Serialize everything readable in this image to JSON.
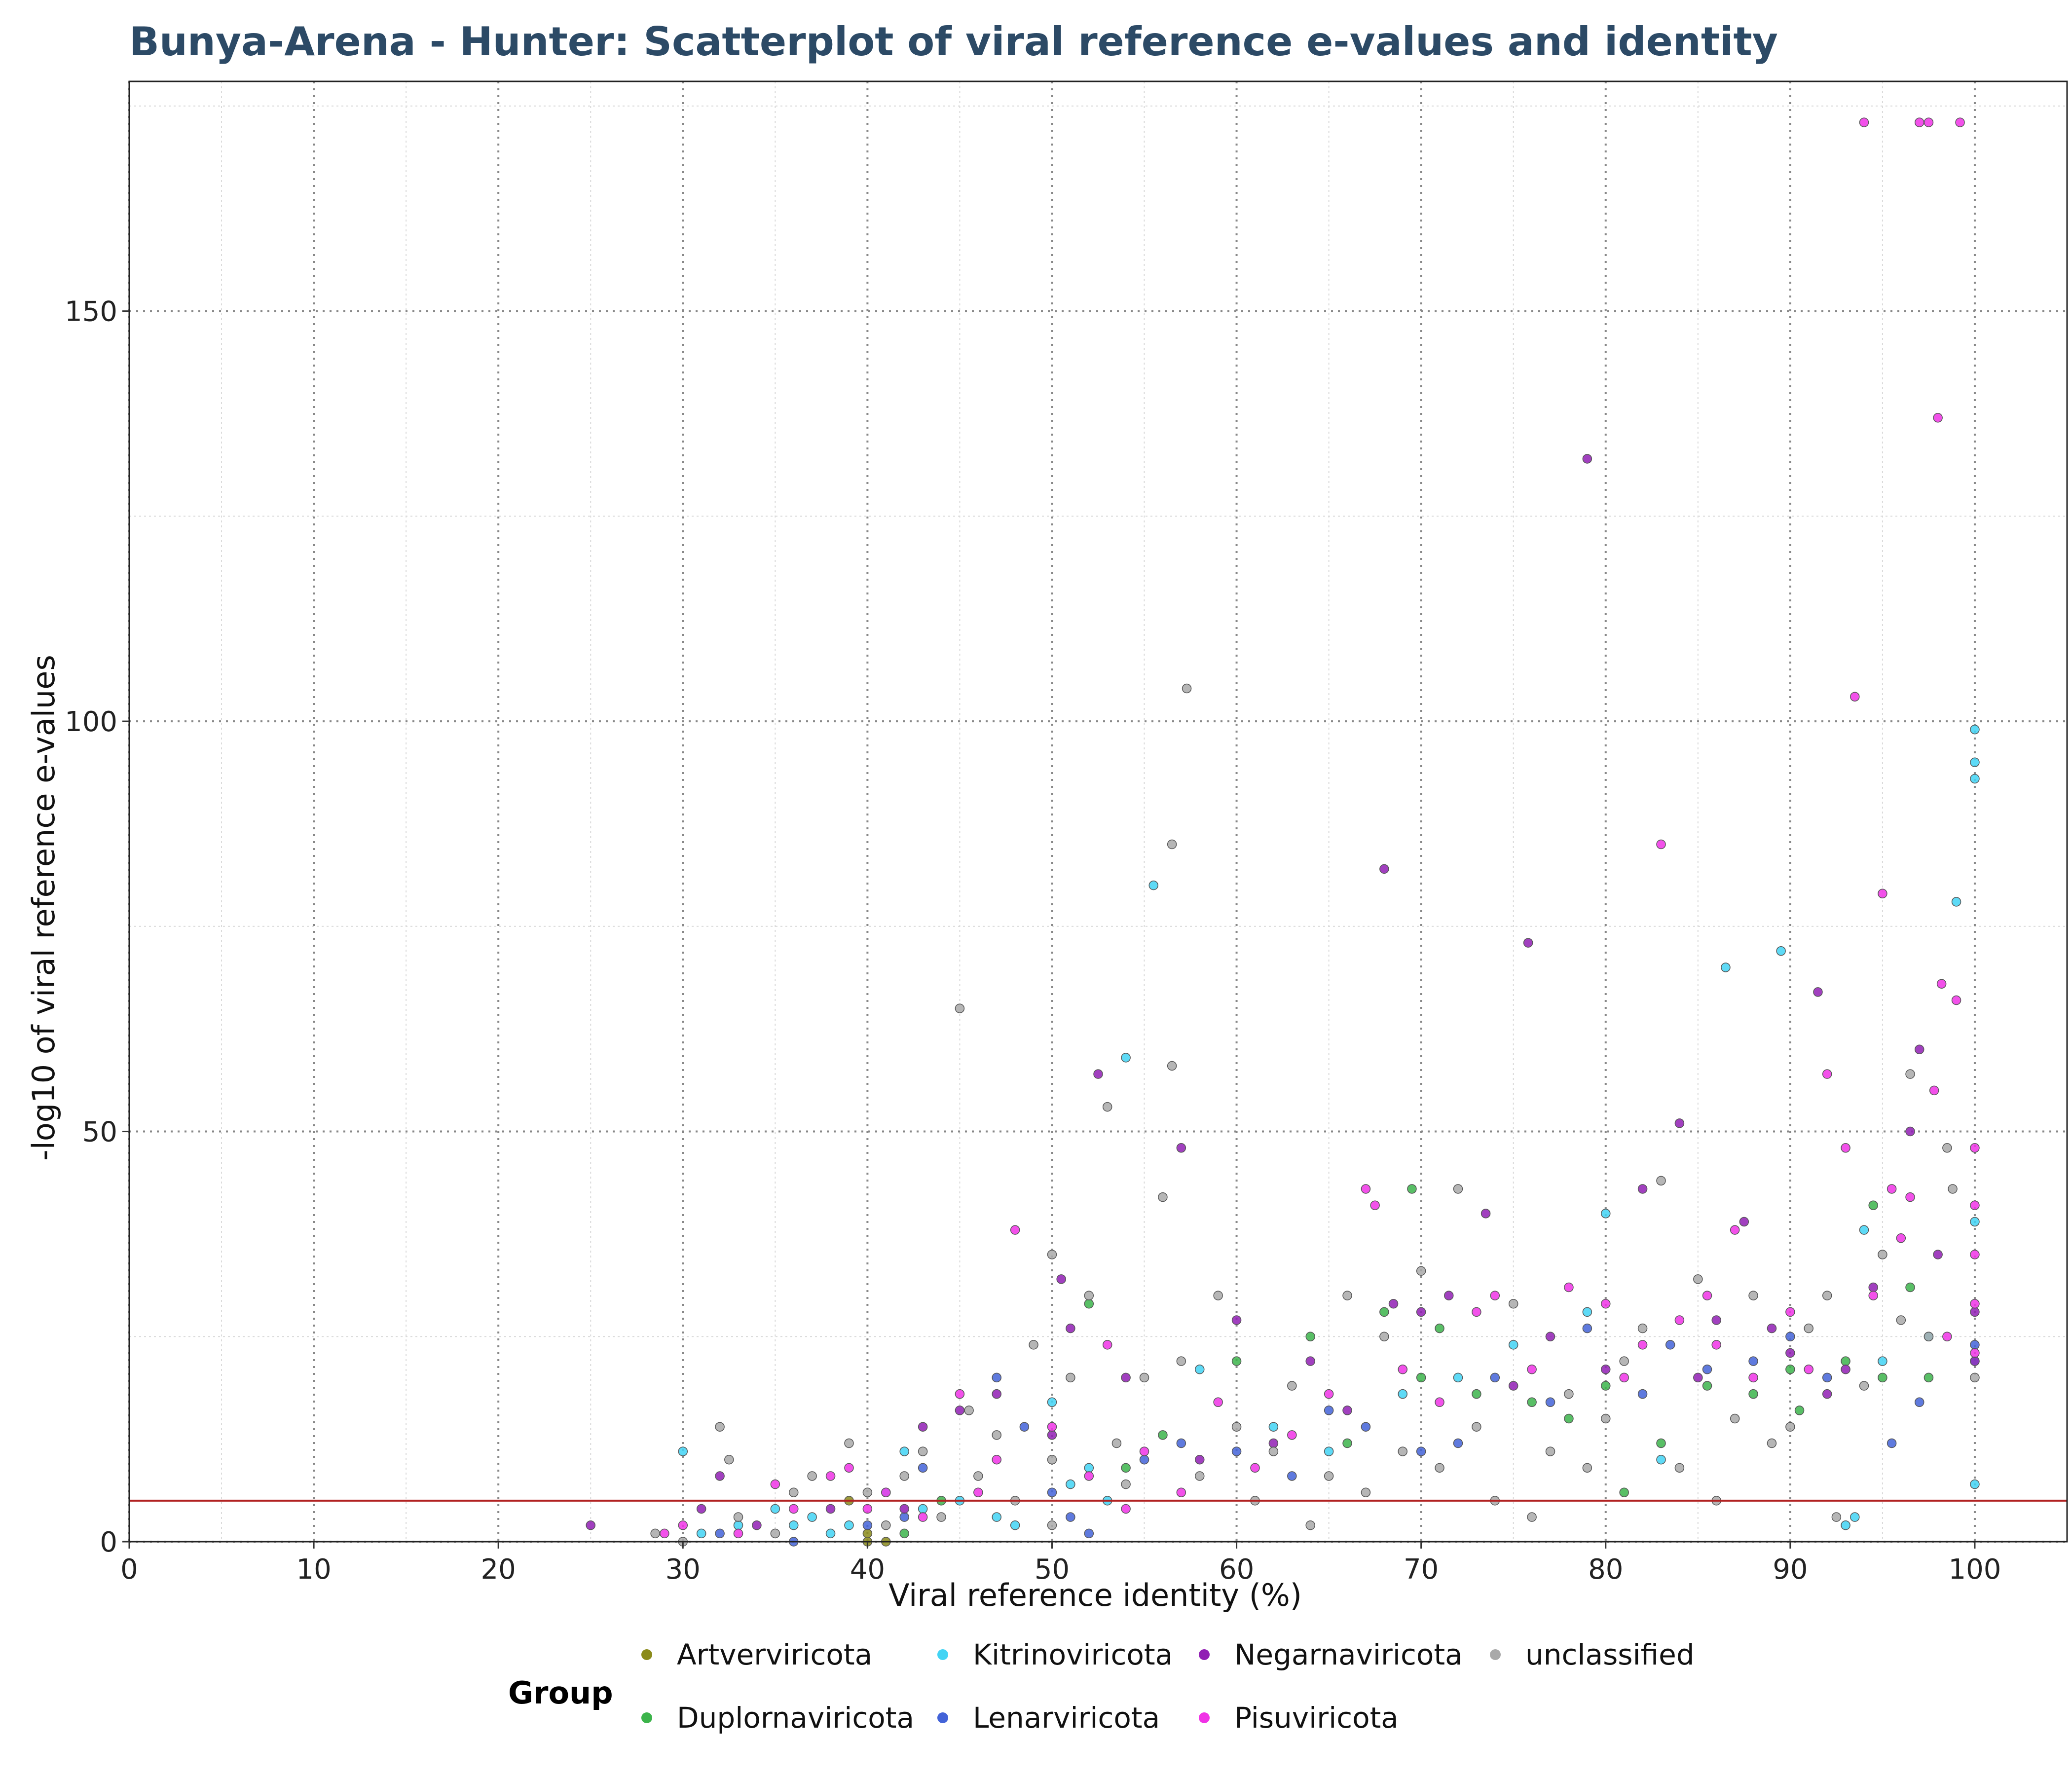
{
  "chart_data": {
    "type": "scatter",
    "title": "Bunya-Arena - Hunter: Scatterplot of viral reference e-values and identity",
    "xlabel": "Viral reference identity (%)",
    "ylabel": "-log10 of viral reference e-values",
    "xlim": [
      0,
      105
    ],
    "ylim": [
      0,
      178
    ],
    "xticks": [
      0,
      10,
      20,
      30,
      40,
      50,
      60,
      70,
      80,
      90,
      100
    ],
    "yticks": [
      0,
      50,
      100,
      150
    ],
    "threshold_line": {
      "y": 5,
      "color": "#b22222"
    },
    "grid": true,
    "legend_placement": "bottom",
    "legend_title": "Group",
    "series": [
      {
        "name": "Artverviricota",
        "color": "#8b8b1a",
        "points": [
          [
            39,
            5
          ],
          [
            40,
            0
          ],
          [
            40,
            1
          ],
          [
            41,
            0
          ]
        ]
      },
      {
        "name": "Duplornaviricota",
        "color": "#3cb44b",
        "points": [
          [
            42,
            1
          ],
          [
            52,
            29
          ],
          [
            56,
            13
          ],
          [
            60,
            22
          ],
          [
            64,
            25
          ],
          [
            68,
            28
          ],
          [
            69.5,
            43
          ],
          [
            71,
            26
          ],
          [
            73,
            18
          ],
          [
            76,
            17
          ],
          [
            80,
            19
          ],
          [
            81,
            6
          ],
          [
            83,
            12
          ],
          [
            85.5,
            19
          ],
          [
            88,
            18
          ],
          [
            90,
            21
          ],
          [
            90.5,
            16
          ],
          [
            93,
            22
          ],
          [
            94.5,
            41
          ],
          [
            95,
            20
          ],
          [
            96.5,
            31
          ],
          [
            97.5,
            20
          ],
          [
            44,
            5
          ],
          [
            54,
            9
          ],
          [
            66,
            12
          ],
          [
            70,
            20
          ],
          [
            78,
            15
          ]
        ]
      },
      {
        "name": "Kitrinoviricota",
        "color": "#42d4f4",
        "points": [
          [
            30,
            11
          ],
          [
            31,
            1
          ],
          [
            33,
            2
          ],
          [
            35,
            4
          ],
          [
            36,
            2
          ],
          [
            37,
            3
          ],
          [
            38,
            1
          ],
          [
            39,
            2
          ],
          [
            41,
            6
          ],
          [
            42,
            11
          ],
          [
            43,
            4
          ],
          [
            45,
            5
          ],
          [
            47,
            3
          ],
          [
            48,
            2
          ],
          [
            50,
            17
          ],
          [
            51,
            7
          ],
          [
            52,
            9
          ],
          [
            53,
            5
          ],
          [
            54,
            59
          ],
          [
            55.5,
            80
          ],
          [
            58,
            21
          ],
          [
            62,
            14
          ],
          [
            65,
            11
          ],
          [
            69,
            18
          ],
          [
            72,
            20
          ],
          [
            75,
            24
          ],
          [
            79,
            28
          ],
          [
            80,
            40
          ],
          [
            83,
            10
          ],
          [
            86.5,
            70
          ],
          [
            89.5,
            72
          ],
          [
            93,
            2
          ],
          [
            93.5,
            3
          ],
          [
            94,
            38
          ],
          [
            95,
            22
          ],
          [
            97.5,
            25
          ],
          [
            99,
            78
          ],
          [
            100,
            99
          ],
          [
            100,
            95
          ],
          [
            100,
            93
          ],
          [
            100,
            39
          ],
          [
            100,
            7
          ],
          [
            100,
            22
          ]
        ]
      },
      {
        "name": "Lenarviricota",
        "color": "#4363d8",
        "points": [
          [
            32,
            1
          ],
          [
            36,
            0
          ],
          [
            40,
            2
          ],
          [
            42,
            3
          ],
          [
            43,
            9
          ],
          [
            47,
            20
          ],
          [
            48.5,
            14
          ],
          [
            50,
            6
          ],
          [
            51,
            3
          ],
          [
            52,
            1
          ],
          [
            55,
            10
          ],
          [
            57,
            12
          ],
          [
            60,
            11
          ],
          [
            63,
            8
          ],
          [
            65,
            16
          ],
          [
            67,
            14
          ],
          [
            70,
            11
          ],
          [
            72,
            12
          ],
          [
            74,
            20
          ],
          [
            77,
            17
          ],
          [
            79,
            26
          ],
          [
            82,
            18
          ],
          [
            83.5,
            24
          ],
          [
            85.5,
            21
          ],
          [
            88,
            22
          ],
          [
            90,
            25
          ],
          [
            92,
            20
          ],
          [
            95.5,
            12
          ],
          [
            97,
            17
          ],
          [
            100,
            24
          ]
        ]
      },
      {
        "name": "Negarnaviricota",
        "color": "#911eb4",
        "points": [
          [
            25,
            2
          ],
          [
            31,
            4
          ],
          [
            32,
            8
          ],
          [
            34,
            2
          ],
          [
            38,
            4
          ],
          [
            42,
            4
          ],
          [
            43,
            14
          ],
          [
            45,
            16
          ],
          [
            47,
            18
          ],
          [
            50,
            13
          ],
          [
            50.5,
            32
          ],
          [
            51,
            26
          ],
          [
            52.5,
            57
          ],
          [
            54,
            20
          ],
          [
            57,
            48
          ],
          [
            58,
            10
          ],
          [
            60,
            27
          ],
          [
            62,
            12
          ],
          [
            64,
            22
          ],
          [
            66,
            16
          ],
          [
            68,
            82
          ],
          [
            68.5,
            29
          ],
          [
            70,
            28
          ],
          [
            71.5,
            30
          ],
          [
            73.5,
            40
          ],
          [
            75,
            19
          ],
          [
            75.8,
            73
          ],
          [
            77,
            25
          ],
          [
            79,
            132
          ],
          [
            80,
            21
          ],
          [
            82,
            43
          ],
          [
            84,
            51
          ],
          [
            85,
            20
          ],
          [
            86,
            27
          ],
          [
            87.5,
            39
          ],
          [
            89,
            26
          ],
          [
            90,
            23
          ],
          [
            91.5,
            67
          ],
          [
            92,
            18
          ],
          [
            93,
            21
          ],
          [
            94.5,
            31
          ],
          [
            96.5,
            50
          ],
          [
            97,
            60
          ],
          [
            98,
            35
          ],
          [
            100,
            28
          ],
          [
            100,
            22
          ]
        ]
      },
      {
        "name": "Pisuviricota",
        "color": "#f032e6",
        "points": [
          [
            29,
            1
          ],
          [
            30,
            2
          ],
          [
            33,
            1
          ],
          [
            35,
            7
          ],
          [
            36,
            4
          ],
          [
            38,
            8
          ],
          [
            39,
            9
          ],
          [
            40,
            4
          ],
          [
            41,
            6
          ],
          [
            43,
            3
          ],
          [
            45,
            18
          ],
          [
            46,
            6
          ],
          [
            47,
            10
          ],
          [
            48,
            38
          ],
          [
            50,
            14
          ],
          [
            52,
            8
          ],
          [
            53,
            24
          ],
          [
            54,
            4
          ],
          [
            55,
            11
          ],
          [
            57,
            6
          ],
          [
            59,
            17
          ],
          [
            61,
            9
          ],
          [
            63,
            13
          ],
          [
            65,
            18
          ],
          [
            67,
            43
          ],
          [
            67.5,
            41
          ],
          [
            69,
            21
          ],
          [
            71,
            17
          ],
          [
            73,
            28
          ],
          [
            74,
            30
          ],
          [
            76,
            21
          ],
          [
            78,
            31
          ],
          [
            80,
            29
          ],
          [
            81,
            20
          ],
          [
            82,
            24
          ],
          [
            83,
            85
          ],
          [
            84,
            27
          ],
          [
            85.5,
            30
          ],
          [
            86,
            24
          ],
          [
            87,
            38
          ],
          [
            88,
            20
          ],
          [
            90,
            28
          ],
          [
            91,
            21
          ],
          [
            92,
            57
          ],
          [
            93,
            48
          ],
          [
            93.5,
            103
          ],
          [
            94,
            173
          ],
          [
            94.5,
            30
          ],
          [
            95,
            79
          ],
          [
            95.5,
            43
          ],
          [
            96,
            37
          ],
          [
            96.5,
            42
          ],
          [
            97,
            173
          ],
          [
            97.5,
            173
          ],
          [
            97.8,
            55
          ],
          [
            98,
            137
          ],
          [
            98.2,
            68
          ],
          [
            98.5,
            25
          ],
          [
            99,
            66
          ],
          [
            99.2,
            173
          ],
          [
            100,
            48
          ],
          [
            100,
            41
          ],
          [
            100,
            35
          ],
          [
            100,
            29
          ],
          [
            100,
            23
          ]
        ]
      },
      {
        "name": "unclassified",
        "color": "#a9a9a9",
        "points": [
          [
            28.5,
            1
          ],
          [
            30,
            0
          ],
          [
            32,
            14
          ],
          [
            32.5,
            10
          ],
          [
            33,
            3
          ],
          [
            35,
            1
          ],
          [
            36,
            6
          ],
          [
            37,
            8
          ],
          [
            39,
            12
          ],
          [
            40,
            6
          ],
          [
            41,
            2
          ],
          [
            42,
            8
          ],
          [
            43,
            11
          ],
          [
            44,
            3
          ],
          [
            45,
            65
          ],
          [
            45.5,
            16
          ],
          [
            46,
            8
          ],
          [
            47,
            13
          ],
          [
            48,
            5
          ],
          [
            49,
            24
          ],
          [
            50,
            35
          ],
          [
            50,
            10
          ],
          [
            50,
            2
          ],
          [
            51,
            20
          ],
          [
            52,
            30
          ],
          [
            53,
            53
          ],
          [
            53.5,
            12
          ],
          [
            54,
            7
          ],
          [
            55,
            20
          ],
          [
            56,
            42
          ],
          [
            56.5,
            85
          ],
          [
            56.5,
            58
          ],
          [
            57,
            22
          ],
          [
            57.3,
            104
          ],
          [
            58,
            8
          ],
          [
            59,
            30
          ],
          [
            60,
            14
          ],
          [
            61,
            5
          ],
          [
            62,
            11
          ],
          [
            63,
            19
          ],
          [
            64,
            2
          ],
          [
            65,
            8
          ],
          [
            66,
            30
          ],
          [
            67,
            6
          ],
          [
            68,
            25
          ],
          [
            69,
            11
          ],
          [
            70,
            33
          ],
          [
            71,
            9
          ],
          [
            72,
            43
          ],
          [
            73,
            14
          ],
          [
            74,
            5
          ],
          [
            75,
            29
          ],
          [
            76,
            3
          ],
          [
            77,
            11
          ],
          [
            78,
            18
          ],
          [
            79,
            9
          ],
          [
            80,
            15
          ],
          [
            81,
            22
          ],
          [
            82,
            26
          ],
          [
            83,
            44
          ],
          [
            84,
            9
          ],
          [
            85,
            32
          ],
          [
            86,
            5
          ],
          [
            87,
            15
          ],
          [
            88,
            30
          ],
          [
            89,
            12
          ],
          [
            90,
            14
          ],
          [
            91,
            26
          ],
          [
            92,
            30
          ],
          [
            92.5,
            3
          ],
          [
            94,
            19
          ],
          [
            95,
            35
          ],
          [
            96,
            27
          ],
          [
            96.5,
            57
          ],
          [
            97.5,
            25
          ],
          [
            98.5,
            48
          ],
          [
            98.8,
            43
          ],
          [
            100,
            20
          ]
        ]
      }
    ]
  }
}
